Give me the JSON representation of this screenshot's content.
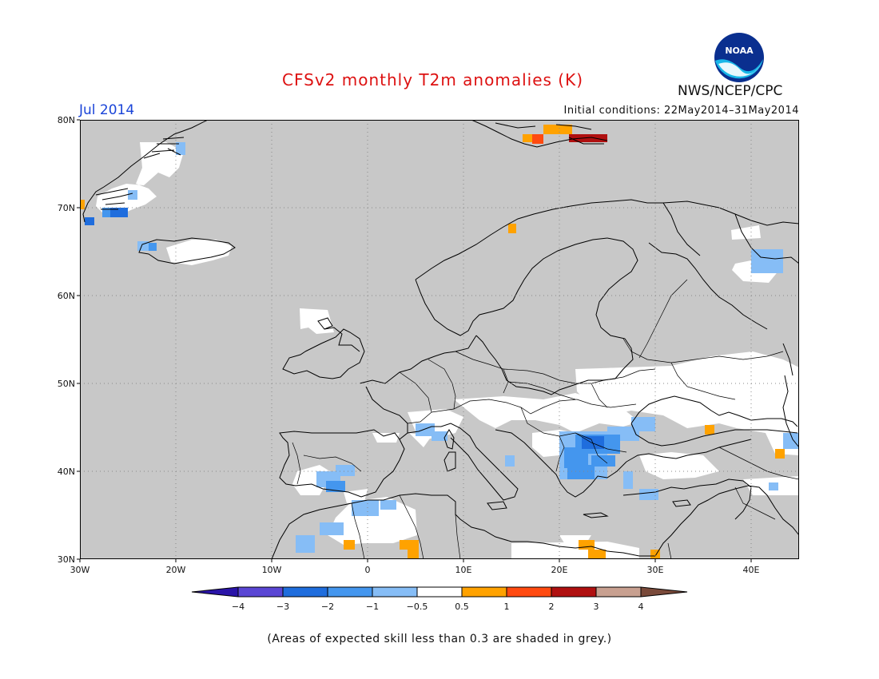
{
  "header": {
    "title": "CFSv2 monthly T2m anomalies (K)",
    "month": "Jul 2014",
    "initial_conditions": "Initial conditions: 22May2014–31May2014",
    "org": "NWS/NCEP/CPC",
    "logo_text": "NOAA"
  },
  "map": {
    "lat_labels": [
      "80N",
      "70N",
      "60N",
      "50N",
      "40N",
      "30N"
    ],
    "lon_labels": [
      "30W",
      "20W",
      "10W",
      "0",
      "10E",
      "20E",
      "30E",
      "40E"
    ],
    "grid": "dotted",
    "background_color": "#c8c8c8"
  },
  "colorbar": {
    "labels": [
      "−4",
      "−3",
      "−2",
      "−1",
      "−0.5",
      "0.5",
      "1",
      "2",
      "3",
      "4"
    ],
    "colors": [
      "#2a14a8",
      "#5a46d4",
      "#1f6ddd",
      "#4496ee",
      "#86bdf6",
      "#ffffff",
      "#ffa200",
      "#ff4a10",
      "#b01010",
      "#c8a090",
      "#7a4a3a"
    ]
  },
  "footnote": "(Areas of expected skill less than 0.3 are shaded in grey.)"
}
